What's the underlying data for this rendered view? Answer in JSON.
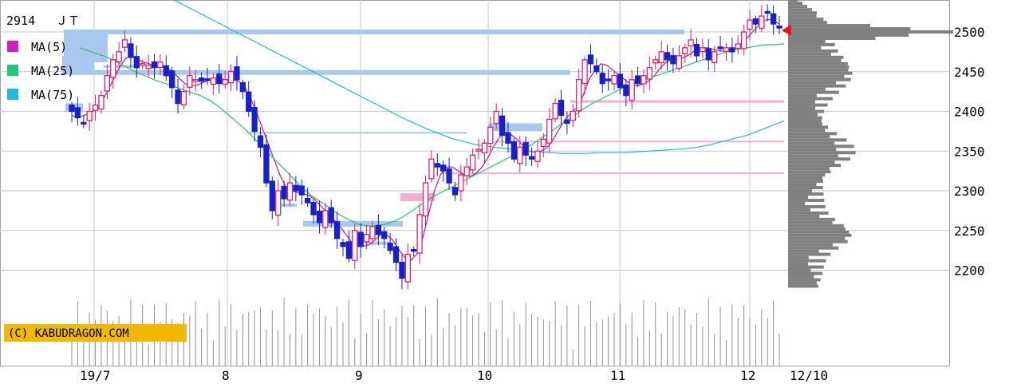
{
  "header": {
    "code": "2914",
    "name": "ＪＴ"
  },
  "legend": [
    {
      "label": "MA(5)",
      "color": "#d020c0"
    },
    {
      "label": "MA(25)",
      "color": "#1ec878"
    },
    {
      "label": "MA(75)",
      "color": "#20b8e0"
    }
  ],
  "copyright": "(C) KABUDRAGON.COM",
  "last_date_label": "12/10",
  "colors": {
    "up": "#e0206a",
    "down": "#1820c8",
    "ma5": "#c01898",
    "ma25": "#30c070",
    "ma75": "#20b8d0",
    "volume": "#909090",
    "profile": "#808080",
    "blue_zone": "#a8c8f0",
    "pink_zone": "#f0b0d0",
    "grid": "#c8c8c8",
    "copyright_bg": "#f0b800",
    "marker": "#e01818"
  },
  "chart_data": {
    "type": "candlestick",
    "title": "2914 ＪＴ",
    "y_axis": {
      "ticks": [
        2200,
        2250,
        2300,
        2350,
        2400,
        2450,
        2500
      ],
      "ylim": [
        2150,
        2540
      ],
      "side": "right"
    },
    "x_labels": [
      "19/7",
      "8",
      "9",
      "10",
      "11",
      "12",
      "12/10"
    ],
    "grid": true,
    "last_price": 2505,
    "price_path": [
      2400,
      2392,
      2385,
      2400,
      2408,
      2420,
      2445,
      2465,
      2475,
      2490,
      2468,
      2455,
      2460,
      2458,
      2455,
      2462,
      2445,
      2430,
      2410,
      2425,
      2445,
      2440,
      2438,
      2440,
      2442,
      2435,
      2440,
      2450,
      2440,
      2425,
      2400,
      2375,
      2355,
      2310,
      2275,
      2300,
      2290,
      2310,
      2300,
      2295,
      2285,
      2270,
      2260,
      2275,
      2260,
      2240,
      2230,
      2215,
      2250,
      2230,
      2245,
      2255,
      2245,
      2240,
      2225,
      2210,
      2190,
      2220,
      2225,
      2270,
      2310,
      2340,
      2330,
      2325,
      2310,
      2295,
      2320,
      2330,
      2345,
      2352,
      2360,
      2380,
      2400,
      2370,
      2360,
      2340,
      2355,
      2345,
      2340,
      2350,
      2365,
      2390,
      2410,
      2395,
      2385,
      2400,
      2440,
      2465,
      2460,
      2450,
      2435,
      2440,
      2445,
      2430,
      2420,
      2440,
      2435,
      2445,
      2455,
      2465,
      2475,
      2465,
      2460,
      2470,
      2480,
      2490,
      2470,
      2480,
      2465,
      2475,
      2480,
      2480,
      2475,
      2485,
      2500,
      2515,
      2510,
      2520,
      2525,
      2510,
      2505
    ],
    "ma_lines": [
      {
        "name": "MA(5)",
        "series_path": [
          2395,
          2392,
          2395,
          2398,
          2402,
          2412,
          2425,
          2440,
          2455,
          2466,
          2470,
          2466,
          2462,
          2460,
          2456,
          2456,
          2455,
          2450,
          2442,
          2435,
          2432,
          2433,
          2436,
          2439,
          2441,
          2441,
          2440,
          2440,
          2438,
          2432,
          2418,
          2400,
          2380,
          2360,
          2340,
          2320,
          2305,
          2300,
          2298,
          2296,
          2294,
          2288,
          2280,
          2272,
          2264,
          2256,
          2246,
          2236,
          2232,
          2230,
          2232,
          2238,
          2245,
          2244,
          2238,
          2226,
          2216,
          2212,
          2220,
          2240,
          2270,
          2300,
          2320,
          2330,
          2330,
          2325,
          2320,
          2318,
          2322,
          2330,
          2342,
          2356,
          2368,
          2374,
          2370,
          2364,
          2356,
          2350,
          2348,
          2350,
          2355,
          2365,
          2378,
          2390,
          2398,
          2405,
          2420,
          2440,
          2452,
          2460,
          2458,
          2452,
          2446,
          2440,
          2434,
          2432,
          2434,
          2438,
          2445,
          2455,
          2462,
          2465,
          2466,
          2468,
          2472,
          2478,
          2480,
          2480,
          2478,
          2476,
          2476,
          2478,
          2480,
          2488,
          2496,
          2504,
          2512,
          2516,
          2514,
          2510
        ]
      },
      {
        "name": "MA(25)",
        "series_path": [
          2480,
          2476,
          2472,
          2468,
          2462,
          2456,
          2450,
          2445,
          2440,
          2436,
          2432,
          2428,
          2424,
          2420,
          2414,
          2406,
          2396,
          2386,
          2376,
          2364,
          2352,
          2340,
          2328,
          2316,
          2304,
          2294,
          2286,
          2278,
          2270,
          2264,
          2258,
          2256,
          2256,
          2258,
          2262,
          2268,
          2276,
          2284,
          2292,
          2298,
          2304,
          2310,
          2316,
          2322,
          2328,
          2334,
          2340,
          2346,
          2352,
          2360,
          2368,
          2376,
          2384,
          2392,
          2400,
          2408,
          2414,
          2420,
          2426,
          2432,
          2436,
          2440,
          2444,
          2448,
          2452,
          2456,
          2460,
          2464,
          2468,
          2472,
          2476,
          2478,
          2480,
          2482,
          2484,
          2484,
          2485
        ]
      },
      {
        "name": "MA(75)",
        "series_path": [
          2560,
          2552,
          2544,
          2536,
          2528,
          2520,
          2512,
          2504,
          2496,
          2488,
          2480,
          2472,
          2464,
          2456,
          2448,
          2440,
          2432,
          2424,
          2416,
          2408,
          2400,
          2392,
          2385,
          2378,
          2372,
          2366,
          2362,
          2358,
          2356,
          2354,
          2352,
          2350,
          2349,
          2348,
          2347,
          2347,
          2347,
          2348,
          2348,
          2348,
          2349,
          2350,
          2351,
          2352,
          2353,
          2355,
          2358,
          2362,
          2366,
          2370,
          2376,
          2382,
          2388
        ]
      }
    ]
  }
}
